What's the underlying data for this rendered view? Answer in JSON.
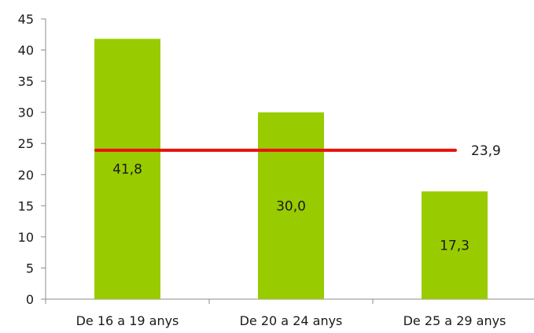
{
  "chart_data": {
    "type": "bar",
    "categories": [
      "De 16 a 19 anys",
      "De 20 a 24 anys",
      "De 25 a 29 anys"
    ],
    "values": [
      41.8,
      30.0,
      17.3
    ],
    "value_labels": [
      "41,8",
      "30,0",
      "17,3"
    ],
    "reference_line": {
      "value": 23.9,
      "label": "23,9",
      "color": "#e8120c"
    },
    "y_ticks": [
      "0",
      "5",
      "10",
      "15",
      "20",
      "25",
      "30",
      "35",
      "40",
      "45"
    ],
    "ylim": [
      0,
      45
    ],
    "title": "",
    "xlabel": "",
    "ylabel": "",
    "grid": false,
    "bar_color": "#99cc00"
  }
}
